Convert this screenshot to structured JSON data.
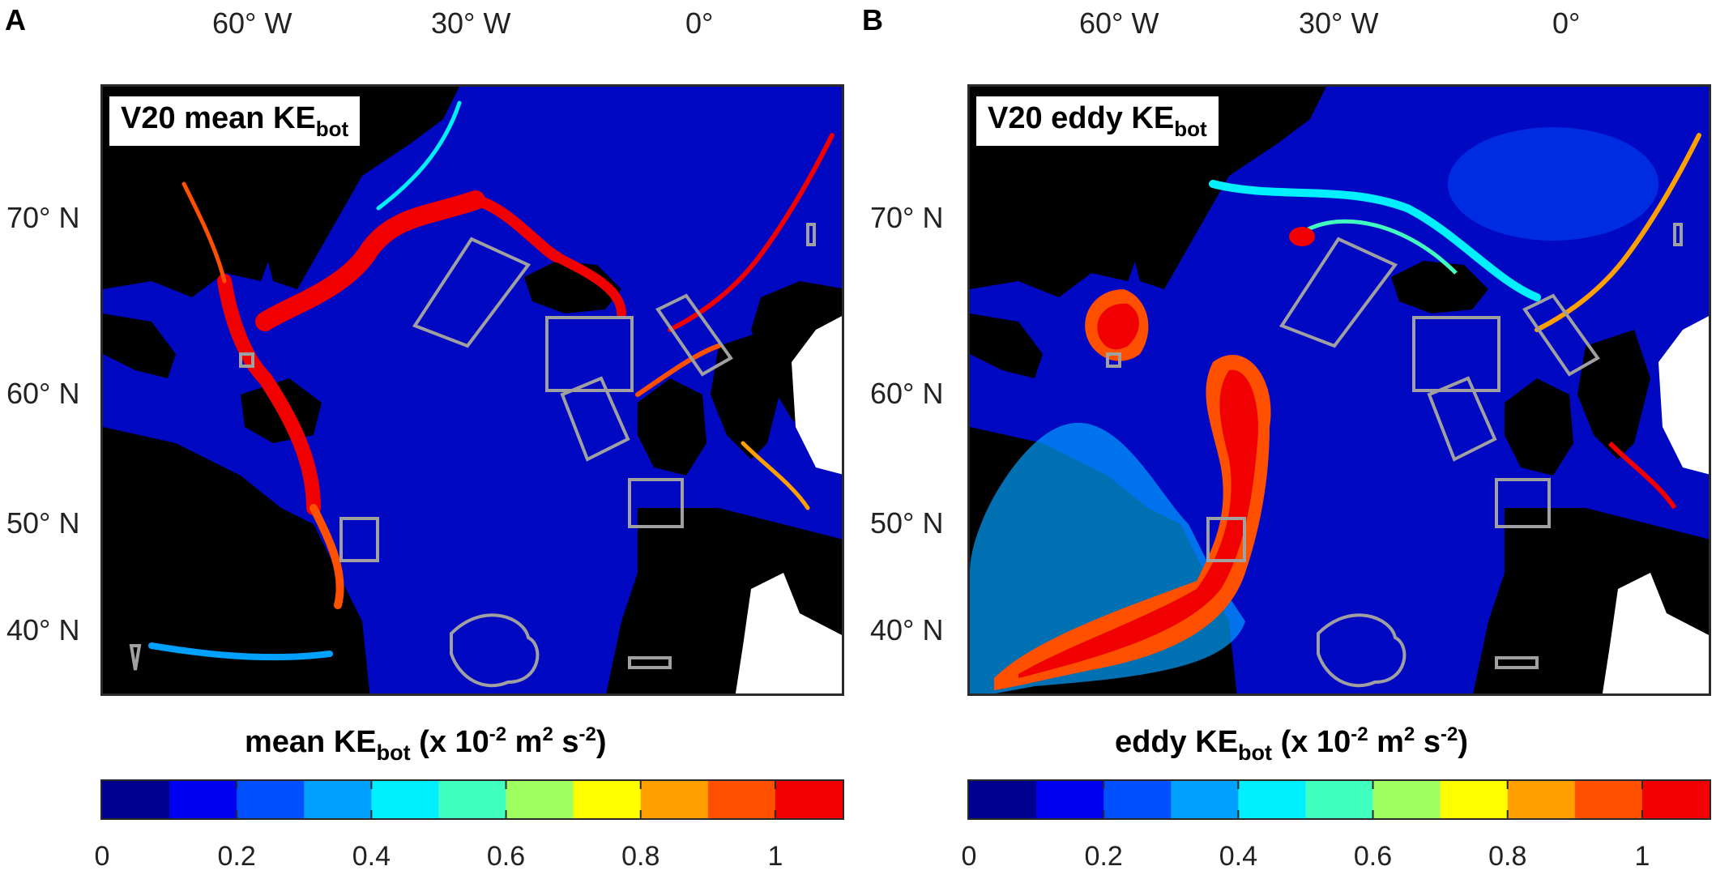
{
  "figure": {
    "lon_ticks": [
      "60° W",
      "30° W",
      "0°"
    ],
    "lat_ticks": [
      "70° N",
      "60° N",
      "50° N",
      "40° N"
    ],
    "colorbar_ticks": [
      "0",
      "0.2",
      "0.4",
      "0.6",
      "0.8",
      "1"
    ],
    "colorbar_colors": [
      "#00008f",
      "#0000f0",
      "#0050ff",
      "#00a0ff",
      "#00f0ff",
      "#40ffbf",
      "#a0ff60",
      "#ffff00",
      "#ffa000",
      "#ff5000",
      "#f00000"
    ],
    "colors": {
      "ocean": "#0008c2",
      "land": "#000000",
      "outside_domain": "#ffffff",
      "region_outline": "#a0a0a0"
    }
  },
  "panels": [
    {
      "letter": "A",
      "title_main": "V20 mean KE",
      "title_sub": "bot",
      "colorbar_label_pre": "mean KE",
      "colorbar_label_sub": "bot",
      "colorbar_label_units_a": " (x 10",
      "colorbar_label_exp1": "-2",
      "colorbar_label_units_b": " m",
      "colorbar_label_exp2": "2",
      "colorbar_label_units_c": " s",
      "colorbar_label_exp3": "-2",
      "colorbar_label_end": ")"
    },
    {
      "letter": "B",
      "title_main": "V20 eddy KE",
      "title_sub": "bot",
      "colorbar_label_pre": "eddy KE",
      "colorbar_label_sub": "bot",
      "colorbar_label_units_a": " (x 10",
      "colorbar_label_exp1": "-2",
      "colorbar_label_units_b": " m",
      "colorbar_label_exp2": "2",
      "colorbar_label_units_c": " s",
      "colorbar_label_exp3": "-2",
      "colorbar_label_end": ")"
    }
  ]
}
